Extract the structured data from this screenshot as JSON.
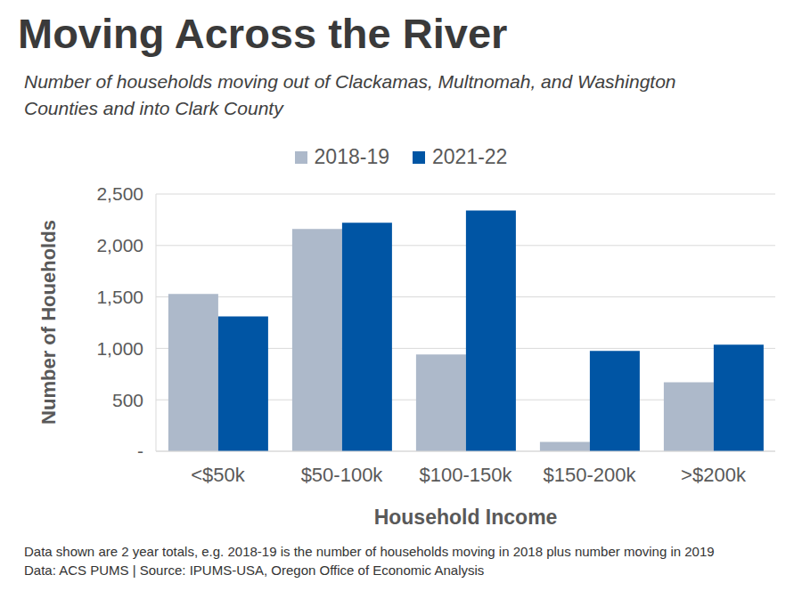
{
  "chart_data": {
    "type": "bar",
    "title": "Moving Across the River",
    "subtitle": [
      "Number of households moving out of Clackamas, Multnomah, and Washington",
      "Counties and into Clark County"
    ],
    "categories": [
      "<$50k",
      "$50-100k",
      "$100-150k",
      "$150-200k",
      ">$200k"
    ],
    "series": [
      {
        "name": "2018-19",
        "color": "#adb9ca",
        "values": [
          1530,
          2160,
          940,
          90,
          670
        ]
      },
      {
        "name": "2021-22",
        "color": "#0055a4",
        "values": [
          1310,
          2220,
          2340,
          975,
          1035
        ]
      }
    ],
    "x_label": "Household Income",
    "y_label": "Number of Houeholds",
    "ylim": [
      0,
      2500
    ],
    "yticks": [
      {
        "value": 0,
        "label": "-"
      },
      500,
      {
        "value": 1000,
        "label": "1,000"
      },
      {
        "value": 1500,
        "label": "1,500"
      },
      {
        "value": 2000,
        "label": "2,000"
      },
      {
        "value": 2500,
        "label": "2,500"
      }
    ],
    "grid": true,
    "legend": "top",
    "annotations": [
      "Data shown are 2 year totals, e.g. 2018-19 is the number of households moving in 2018 plus number moving in 2019",
      "Data: ACS PUMS | Source: IPUMS-USA, Oregon Office of Economic Analysis"
    ]
  }
}
